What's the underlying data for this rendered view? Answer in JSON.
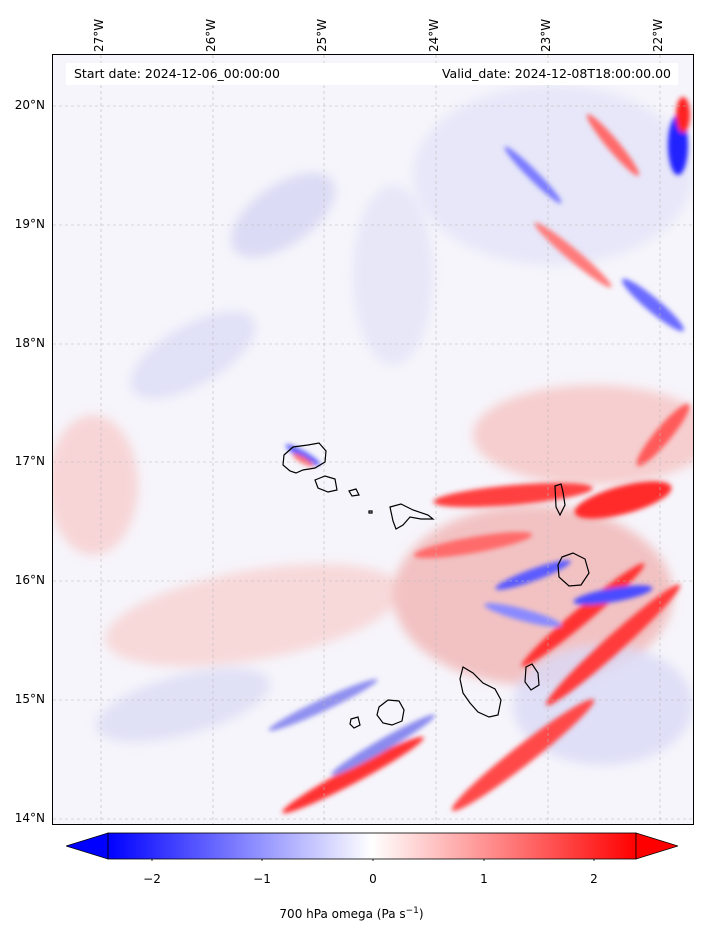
{
  "map": {
    "lon_labels": [
      "27°W",
      "26°W",
      "25°W",
      "24°W",
      "23°W",
      "22°W"
    ],
    "lat_labels": [
      "20°N",
      "19°N",
      "18°N",
      "17°N",
      "16°N",
      "15°N",
      "14°N"
    ],
    "start_date": "Start date: 2024-12-06_00:00:00",
    "valid_date": "Valid_date: 2024-12-08T18:00:00.00",
    "extent": {
      "lon": [
        -27.4,
        -21.8
      ],
      "lat": [
        13.95,
        20.45
      ]
    },
    "gridlines": true,
    "coastline_color": "#000000"
  },
  "colorbar": {
    "ticks": [
      "−2",
      "−1",
      "0",
      "1",
      "2"
    ],
    "label": "700 hPa omega (Pa s",
    "label_sup": "−1",
    "label_end": ")",
    "min_color": "#0000ff",
    "mid_color": "#ffffff",
    "max_color": "#ff0000",
    "range": [
      -2.6,
      2.6
    ]
  }
}
